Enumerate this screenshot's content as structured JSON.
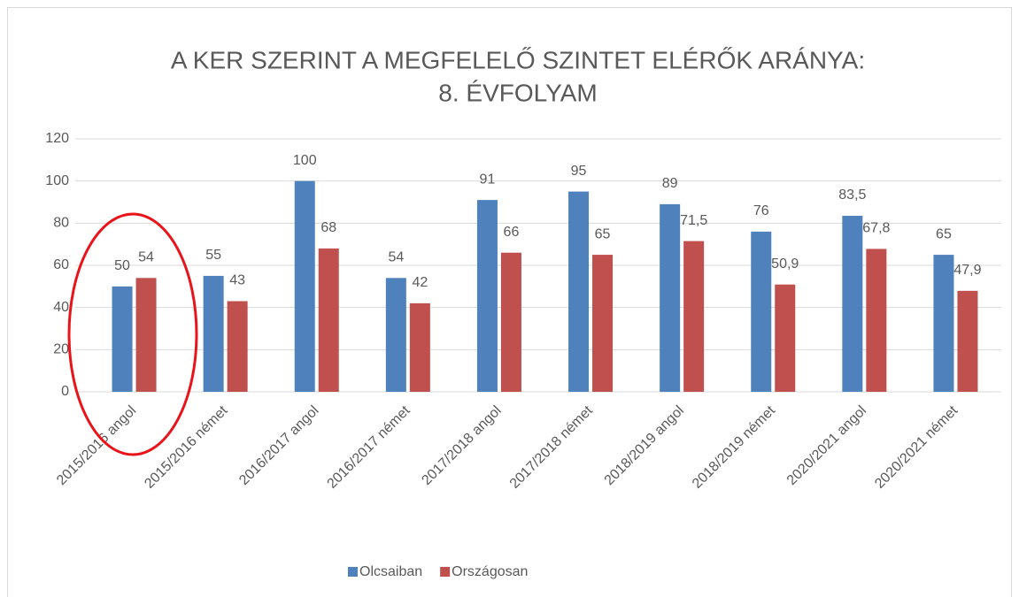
{
  "chart_data": {
    "type": "bar",
    "title": [
      "A KER SZERINT A MEGFELELŐ SZINTET ELÉRŐK ARÁNYA:",
      "8. ÉVFOLYAM"
    ],
    "categories": [
      "2015/2016 angol",
      "2015/2016 német",
      "2016/2017 angol",
      "2016/2017 német",
      "2017/2018 angol",
      "2017/2018 német",
      "2018/2019 angol",
      "2018/2019 német",
      "2020/2021 angol",
      "2020/2021 német"
    ],
    "series": [
      {
        "name": "Olcsaiban",
        "color": "#4f81bd",
        "values": [
          50,
          55,
          100,
          54,
          91,
          95,
          89,
          76,
          83.5,
          65
        ],
        "value_labels": [
          "50",
          "55",
          "100",
          "54",
          "91",
          "95",
          "89",
          "76",
          "83,5",
          "65"
        ]
      },
      {
        "name": "Országosan",
        "color": "#c0504d",
        "values": [
          54,
          43,
          68,
          42,
          66,
          65,
          71.5,
          50.9,
          67.8,
          47.9
        ],
        "value_labels": [
          "54",
          "43",
          "68",
          "42",
          "66",
          "65",
          "71,5",
          "50,9",
          "67,8",
          "47,9"
        ]
      }
    ],
    "ylim": [
      0,
      120
    ],
    "yticks": [
      0,
      20,
      40,
      60,
      80,
      100,
      120
    ],
    "grid": true,
    "legend": "bottom"
  }
}
